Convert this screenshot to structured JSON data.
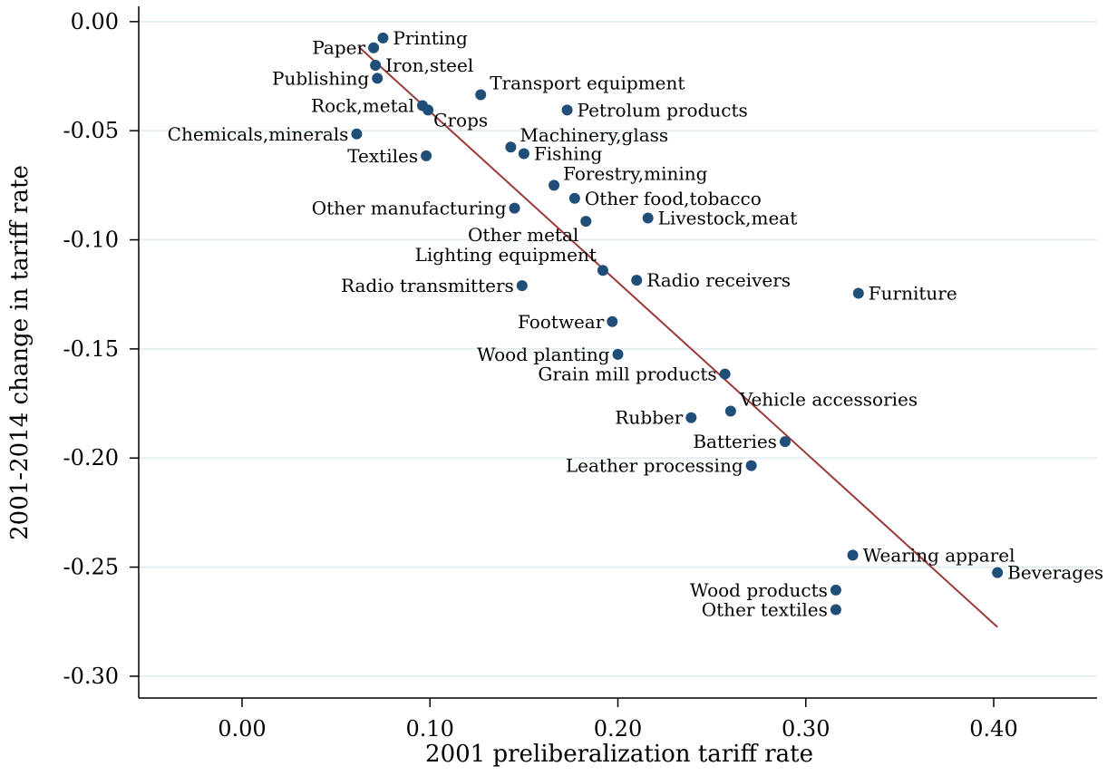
{
  "chart_data": {
    "type": "scatter",
    "xlabel": "2001 preliberalization tariff rate",
    "ylabel": "2001-2014 change in tariff rate",
    "xlim": [
      -0.055,
      0.455
    ],
    "ylim": [
      -0.31,
      0.007
    ],
    "xticks": [
      0.0,
      0.1,
      0.2,
      0.3,
      0.4
    ],
    "yticks": [
      0.0,
      -0.05,
      -0.1,
      -0.15,
      -0.2,
      -0.25,
      -0.3
    ],
    "xtick_labels": [
      "0.00",
      "0.10",
      "0.20",
      "0.30",
      "0.40"
    ],
    "ytick_labels": [
      "0.00",
      "-0.05",
      "-0.10",
      "-0.15",
      "-0.20",
      "-0.25",
      "-0.30"
    ],
    "grid": "horizontal",
    "colors": {
      "marker": "#1f4e79",
      "fit_line": "#9b3a3a",
      "grid": "#e4eef0"
    },
    "fit_line": {
      "x": [
        0.062,
        0.402
      ],
      "y": [
        -0.0115,
        -0.2775
      ]
    },
    "points": [
      {
        "label": "Printing",
        "x": 0.075,
        "y": -0.0075,
        "pos": "right"
      },
      {
        "label": "Paper",
        "x": 0.07,
        "y": -0.012,
        "pos": "left"
      },
      {
        "label": "Iron,steel",
        "x": 0.071,
        "y": -0.02,
        "pos": "right"
      },
      {
        "label": "Publishing",
        "x": 0.072,
        "y": -0.026,
        "pos": "left"
      },
      {
        "label": "Transport equipment",
        "x": 0.127,
        "y": -0.0335,
        "pos": "upright"
      },
      {
        "label": "Petrolum products",
        "x": 0.173,
        "y": -0.0405,
        "pos": "right"
      },
      {
        "label": "Rock,metal",
        "x": 0.096,
        "y": -0.0385,
        "pos": "left"
      },
      {
        "label": "Crops",
        "x": 0.099,
        "y": -0.0405,
        "pos": "downright"
      },
      {
        "label": "Chemicals,minerals",
        "x": 0.061,
        "y": -0.0515,
        "pos": "left"
      },
      {
        "label": "Machinery,glass",
        "x": 0.143,
        "y": -0.0575,
        "pos": "upright"
      },
      {
        "label": "Fishing",
        "x": 0.15,
        "y": -0.0605,
        "pos": "right"
      },
      {
        "label": "Textiles",
        "x": 0.098,
        "y": -0.0615,
        "pos": "left"
      },
      {
        "label": "Forestry,mining",
        "x": 0.166,
        "y": -0.075,
        "pos": "upright"
      },
      {
        "label": "Other food,tobacco",
        "x": 0.177,
        "y": -0.081,
        "pos": "right"
      },
      {
        "label": "Other manufacturing",
        "x": 0.145,
        "y": -0.0855,
        "pos": "left"
      },
      {
        "label": "Livestock,meat",
        "x": 0.216,
        "y": -0.09,
        "pos": "right"
      },
      {
        "label": "Other metal",
        "x": 0.183,
        "y": -0.0915,
        "pos": "downleft"
      },
      {
        "label": "Lighting equipment",
        "x": 0.192,
        "y": -0.114,
        "pos": "upleft"
      },
      {
        "label": "Radio receivers",
        "x": 0.21,
        "y": -0.1185,
        "pos": "right"
      },
      {
        "label": "Radio transmitters",
        "x": 0.149,
        "y": -0.121,
        "pos": "left"
      },
      {
        "label": "Furniture",
        "x": 0.328,
        "y": -0.1245,
        "pos": "right"
      },
      {
        "label": "Footwear",
        "x": 0.197,
        "y": -0.1375,
        "pos": "left"
      },
      {
        "label": "Wood planting",
        "x": 0.2,
        "y": -0.1525,
        "pos": "left"
      },
      {
        "label": "Grain mill products",
        "x": 0.257,
        "y": -0.1615,
        "pos": "left"
      },
      {
        "label": "Vehicle accessories",
        "x": 0.26,
        "y": -0.1785,
        "pos": "upright"
      },
      {
        "label": "Rubber",
        "x": 0.239,
        "y": -0.1815,
        "pos": "left"
      },
      {
        "label": "Batteries",
        "x": 0.289,
        "y": -0.1925,
        "pos": "left"
      },
      {
        "label": "Leather processing",
        "x": 0.271,
        "y": -0.2035,
        "pos": "left"
      },
      {
        "label": "Wearing apparel",
        "x": 0.325,
        "y": -0.2445,
        "pos": "right"
      },
      {
        "label": "Beverages",
        "x": 0.402,
        "y": -0.2525,
        "pos": "right"
      },
      {
        "label": "Wood products",
        "x": 0.316,
        "y": -0.2605,
        "pos": "left"
      },
      {
        "label": "Other textiles",
        "x": 0.316,
        "y": -0.2695,
        "pos": "left"
      }
    ]
  }
}
